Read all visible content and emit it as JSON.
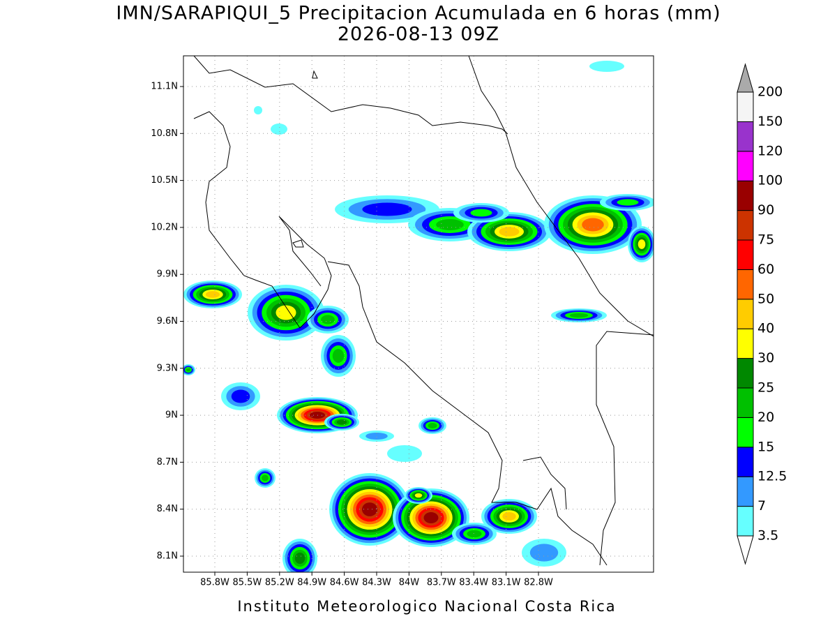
{
  "title": "IMN/SARAPIQUI_5 Precipitacion Acumulada en 6 horas (mm)",
  "subtitle": "2026-08-13 09Z",
  "map": {
    "lat_labels": [
      "11.1N",
      "10.8N",
      "10.5N",
      "10.2N",
      "9.9N",
      "9.6N",
      "9.3N",
      "9N",
      "8.7N",
      "8.4N",
      "8.1N"
    ],
    "lon_labels": [
      "85.8W",
      "85.5W",
      "85.2W",
      "84.9W",
      "84.6W",
      "84.3W",
      "84W",
      "83.7W",
      "83.4W",
      "83.1W",
      "82.8W"
    ]
  },
  "colorbar": {
    "levels": [
      "3.5",
      "7",
      "12.5",
      "15",
      "20",
      "25",
      "30",
      "40",
      "50",
      "60",
      "75",
      "90",
      "100",
      "120",
      "150",
      "200"
    ],
    "colors": [
      "#66ffff",
      "#3399ff",
      "#0000ff",
      "#00ff00",
      "#00c000",
      "#008800",
      "#ffff00",
      "#ffcc00",
      "#ff6600",
      "#ff0000",
      "#cc3300",
      "#990000",
      "#ff00ff",
      "#9933cc",
      "#f5f5f5"
    ],
    "low_color": "#ffffff",
    "high_color": "#aaaaaa"
  },
  "footer": "Instituto Meteorologico Nacional Costa Rica"
}
